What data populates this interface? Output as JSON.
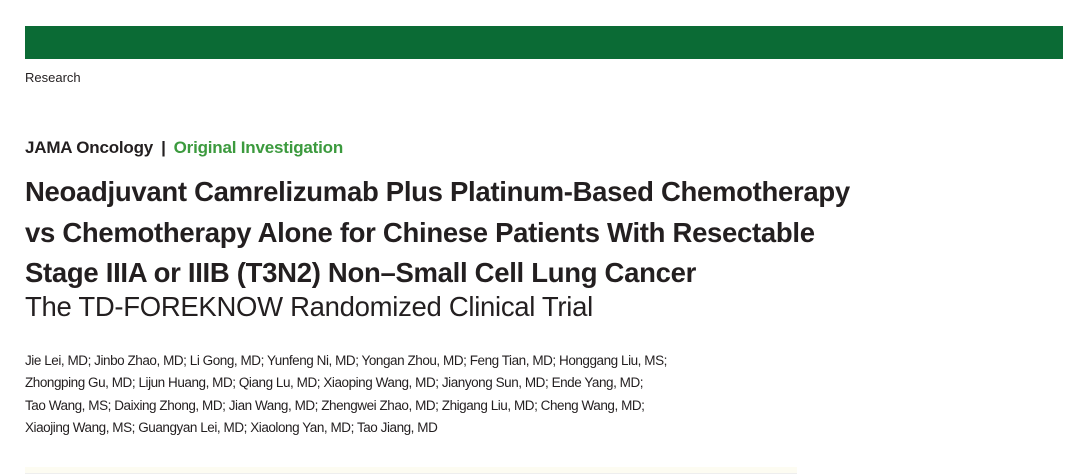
{
  "header": {
    "brand_color": "#0b6b35",
    "section": "Research"
  },
  "journal": {
    "name": "JAMA Oncology",
    "separator": "|",
    "article_type": "Original Investigation",
    "accent_color": "#3c9a3e"
  },
  "article": {
    "title_lines": [
      "Neoadjuvant Camrelizumab Plus Platinum-Based Chemotherapy",
      "vs Chemotherapy Alone for Chinese Patients With Resectable",
      "Stage IIIA or IIIB (T3N2) Non–Small Cell Lung Cancer"
    ],
    "subtitle": "The TD-FOREKNOW Randomized Clinical Trial",
    "author_lines": [
      "Jie Lei, MD; Jinbo Zhao, MD; Li Gong, MD; Yunfeng Ni, MD; Yongan Zhou, MD; Feng Tian, MD; Honggang Liu, MS;",
      "Zhongping Gu, MD; Lijun Huang, MD; Qiang Lu, MD; Xiaoping Wang, MD; Jianyong Sun, MD; Ende Yang, MD;",
      "Tao Wang, MS; Daixing Zhong, MD; Jian Wang, MD; Zhengwei Zhao, MD; Zhigang Liu, MD; Cheng Wang, MD;",
      "Xiaojing Wang, MS; Guangyan Lei, MD; Xiaolong Yan, MD; Tao Jiang, MD"
    ]
  }
}
